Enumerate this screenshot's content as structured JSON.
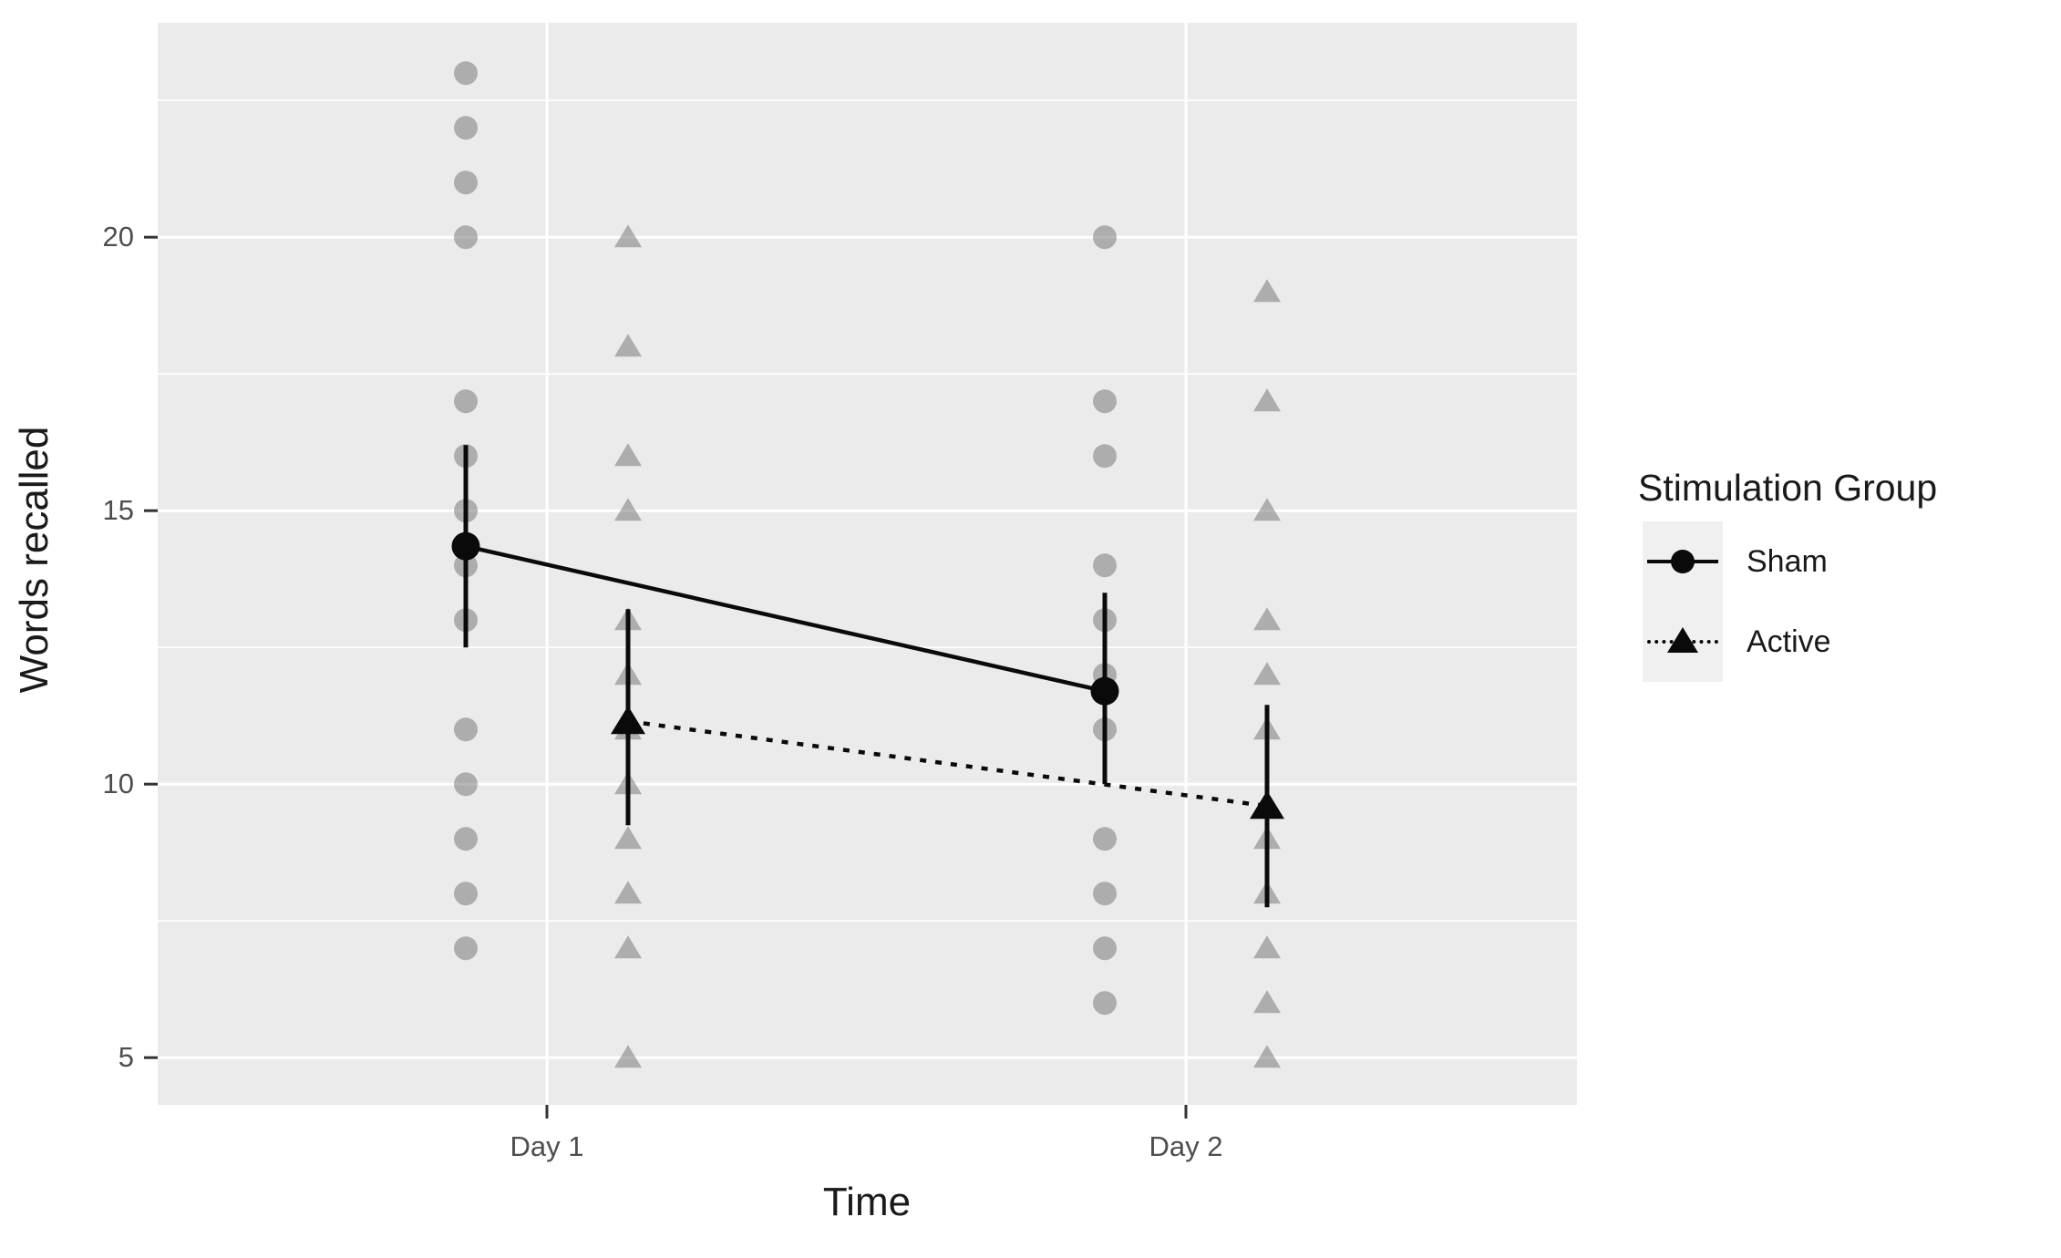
{
  "chart_data": {
    "type": "line",
    "subtype": "means-with-error-bars-and-individual-points",
    "title": "",
    "xlabel": "Time",
    "ylabel": "Words recalled",
    "categories": [
      "Day 1",
      "Day 2"
    ],
    "ytick_labels": [
      "20",
      "15",
      "10",
      "5"
    ],
    "yticks": [
      20,
      15,
      10,
      5
    ],
    "yminor": [
      22.5,
      17.5,
      12.5,
      7.5
    ],
    "ylim": [
      4.1,
      23.9
    ],
    "grid": true,
    "legend_title": "Stimulation Group",
    "legend_position": "right",
    "series": [
      {
        "name": "Sham",
        "marker": "circle",
        "linestyle": "solid",
        "means": [
          14.35,
          11.7
        ],
        "se_low": [
          12.5,
          10.0
        ],
        "se_high": [
          16.2,
          13.5
        ],
        "points_day1": [
          23,
          22,
          21,
          20,
          17,
          16,
          15,
          14,
          13,
          11,
          10,
          9,
          8,
          7
        ],
        "points_day2": [
          20,
          17,
          16,
          14,
          13,
          12,
          11,
          9,
          8,
          7,
          6
        ]
      },
      {
        "name": "Active",
        "marker": "triangle",
        "linestyle": "dotted",
        "means": [
          11.15,
          9.6
        ],
        "se_low": [
          9.25,
          7.75
        ],
        "se_high": [
          13.2,
          11.45
        ],
        "points_day1": [
          20,
          18,
          16,
          15,
          13,
          12,
          11,
          10,
          9,
          8,
          7,
          5
        ],
        "points_day2": [
          19,
          17,
          15,
          13,
          12,
          11,
          9,
          8,
          7,
          6,
          5
        ]
      }
    ],
    "colors": {
      "panel_background": "#ebebeb",
      "gridline": "#ffffff",
      "individual_point": "#707070",
      "individual_point_alpha": 0.5,
      "mean_black": "#0a0a0a",
      "tick_mark": "#333333",
      "tick_text": "#4d4d4d",
      "title_text": "#1a1a1a",
      "legend_key_background": "#f0f0f0"
    }
  }
}
